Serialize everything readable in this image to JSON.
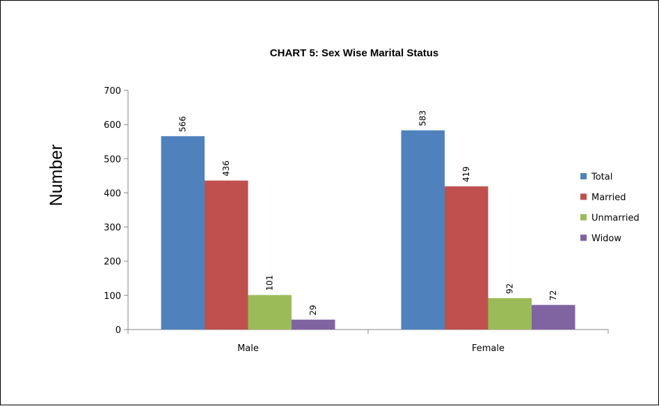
{
  "chart_data": {
    "type": "bar",
    "title": "CHART 5: Sex Wise Marital Status",
    "xlabel": "",
    "ylabel": "Number",
    "categories": [
      "Male",
      "Female"
    ],
    "series": [
      {
        "name": "Total",
        "values": [
          566,
          583
        ],
        "color": "#4F81BD"
      },
      {
        "name": "Married",
        "values": [
          436,
          419
        ],
        "color": "#C0504D"
      },
      {
        "name": "Unmarried",
        "values": [
          101,
          92
        ],
        "color": "#9BBB59"
      },
      {
        "name": "Widow",
        "values": [
          29,
          72
        ],
        "color": "#8064A2"
      }
    ],
    "ylim": [
      0,
      700
    ],
    "yticks": [
      0,
      100,
      200,
      300,
      400,
      500,
      600,
      700
    ],
    "grid": false,
    "legend": "right",
    "data_labels": true
  }
}
